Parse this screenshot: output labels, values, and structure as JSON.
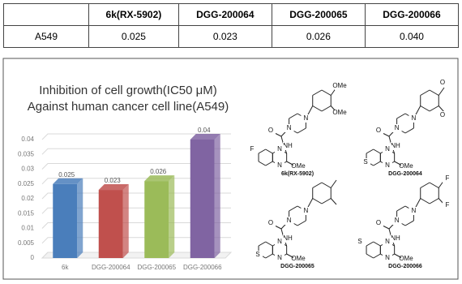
{
  "table": {
    "header": [
      "",
      "6k(RX-5902)",
      "DGG-200064",
      "DGG-200065",
      "DGG-200066"
    ],
    "rows": [
      [
        "A549",
        "0.025",
        "0.023",
        "0.026",
        "0.040"
      ]
    ]
  },
  "chart_data": {
    "type": "bar",
    "title": [
      "Inhibition of cell growth(IC50 μM)",
      "Against human cancer cell line(A549)"
    ],
    "categories": [
      "6k",
      "DGG-200064",
      "DGG-200065",
      "DGG-200066"
    ],
    "values": [
      0.025,
      0.023,
      0.026,
      0.04
    ],
    "colors": [
      "#4a7ebb",
      "#c0504d",
      "#9bbb59",
      "#8064a2"
    ],
    "ylim": [
      0,
      0.04
    ],
    "yticks": [
      0,
      0.005,
      0.01,
      0.015,
      0.02,
      0.025,
      0.03,
      0.035,
      0.04
    ],
    "grid": true
  },
  "structures": [
    {
      "label": "6k(RX-5902)",
      "atoms": [
        "OMe",
        "OMe",
        "N",
        "N",
        "O",
        "NH",
        "F",
        "N",
        "N",
        "OMe"
      ]
    },
    {
      "label": "DGG-200064",
      "atoms": [
        "O",
        "O",
        "N",
        "N",
        "O",
        "NH",
        "S",
        "N",
        "N",
        "OMe"
      ]
    },
    {
      "label": "DGG-200065",
      "atoms": [
        "N",
        "N",
        "O",
        "NH",
        "S",
        "N",
        "N",
        "OMe"
      ]
    },
    {
      "label": "DGG-200066",
      "atoms": [
        "F",
        "F",
        "N",
        "N",
        "O",
        "NH",
        "S",
        "N",
        "N",
        "OMe"
      ]
    }
  ]
}
